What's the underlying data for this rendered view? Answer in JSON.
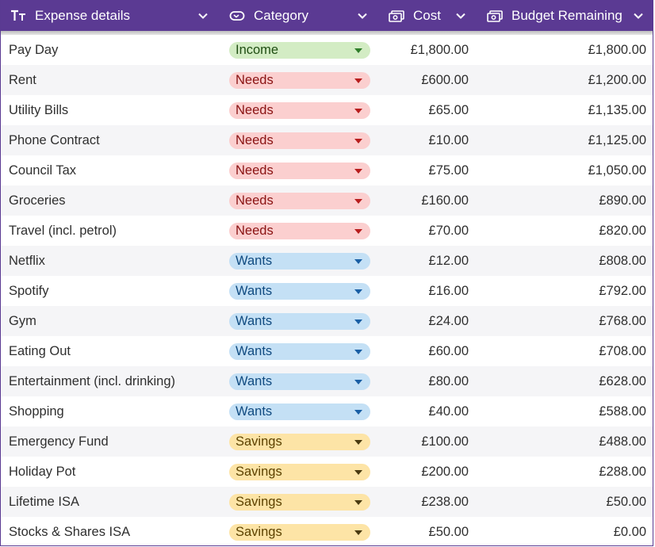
{
  "colors": {
    "header_bg": "#5b3a93",
    "income": "#d3ecc4",
    "needs": "#fbcfcf",
    "wants": "#c4e0f5",
    "savings": "#fde4a6"
  },
  "header": {
    "columns": [
      {
        "label": "Expense details",
        "icon": "text-type-icon"
      },
      {
        "label": "Category",
        "icon": "select-pill-icon"
      },
      {
        "label": "Cost",
        "icon": "currency-note-icon"
      },
      {
        "label": "Budget Remaining",
        "icon": "currency-note-icon"
      }
    ]
  },
  "rows": [
    {
      "name": "Pay Day",
      "category": "Income",
      "cost": "£1,800.00",
      "remaining": "£1,800.00"
    },
    {
      "name": "Rent",
      "category": "Needs",
      "cost": "£600.00",
      "remaining": "£1,200.00"
    },
    {
      "name": "Utility Bills",
      "category": "Needs",
      "cost": "£65.00",
      "remaining": "£1,135.00"
    },
    {
      "name": "Phone Contract",
      "category": "Needs",
      "cost": "£10.00",
      "remaining": "£1,125.00"
    },
    {
      "name": "Council Tax",
      "category": "Needs",
      "cost": "£75.00",
      "remaining": "£1,050.00"
    },
    {
      "name": "Groceries",
      "category": "Needs",
      "cost": "£160.00",
      "remaining": "£890.00"
    },
    {
      "name": "Travel (incl. petrol)",
      "category": "Needs",
      "cost": "£70.00",
      "remaining": "£820.00"
    },
    {
      "name": "Netflix",
      "category": "Wants",
      "cost": "£12.00",
      "remaining": "£808.00"
    },
    {
      "name": "Spotify",
      "category": "Wants",
      "cost": "£16.00",
      "remaining": "£792.00"
    },
    {
      "name": "Gym",
      "category": "Wants",
      "cost": "£24.00",
      "remaining": "£768.00"
    },
    {
      "name": "Eating Out",
      "category": "Wants",
      "cost": "£60.00",
      "remaining": "£708.00"
    },
    {
      "name": "Entertainment (incl. drinking)",
      "category": "Wants",
      "cost": "£80.00",
      "remaining": "£628.00"
    },
    {
      "name": "Shopping",
      "category": "Wants",
      "cost": "£40.00",
      "remaining": "£588.00"
    },
    {
      "name": "Emergency Fund",
      "category": "Savings",
      "cost": "£100.00",
      "remaining": "£488.00"
    },
    {
      "name": "Holiday Pot",
      "category": "Savings",
      "cost": "£200.00",
      "remaining": "£288.00"
    },
    {
      "name": "Lifetime ISA",
      "category": "Savings",
      "cost": "£238.00",
      "remaining": "£50.00"
    },
    {
      "name": "Stocks & Shares ISA",
      "category": "Savings",
      "cost": "£50.00",
      "remaining": "£0.00"
    }
  ]
}
